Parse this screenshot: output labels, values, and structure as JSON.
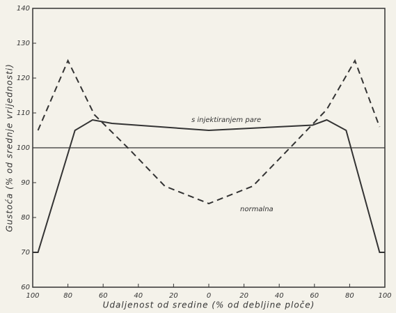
{
  "chart_data": {
    "type": "line",
    "xlabel": "Udaljenost od sredine (% od debljine ploče)",
    "ylabel": "Gustoća (% od srednje vrijednosti)",
    "xlim": [
      -100,
      100
    ],
    "xticks": [
      {
        "value": -100,
        "label": "100"
      },
      {
        "value": -80,
        "label": "80"
      },
      {
        "value": -60,
        "label": "60"
      },
      {
        "value": -40,
        "label": "40"
      },
      {
        "value": -20,
        "label": "20"
      },
      0,
      20,
      40,
      60,
      80,
      100
    ],
    "ylim": [
      60,
      140
    ],
    "yticks": [
      60,
      70,
      80,
      90,
      100,
      110,
      120,
      130,
      140
    ],
    "reference_line": 100,
    "series": [
      {
        "name": "s injektiranjem pare",
        "color": "#333333",
        "dash": false,
        "x": [
          -100,
          -97,
          -76,
          -66,
          -55,
          0,
          59,
          67,
          78,
          97,
          100
        ],
        "values": [
          70,
          70,
          105,
          108,
          107,
          105,
          106.5,
          108,
          105,
          70,
          70
        ]
      },
      {
        "name": "normalna",
        "color": "#333333",
        "dash": true,
        "x": [
          -97,
          -80,
          -65,
          -45,
          -25,
          0,
          25,
          49,
          67,
          83,
          97
        ],
        "values": [
          105,
          125,
          109.5,
          99.5,
          89,
          84,
          89,
          101.5,
          111,
          125,
          106
        ]
      }
    ]
  }
}
